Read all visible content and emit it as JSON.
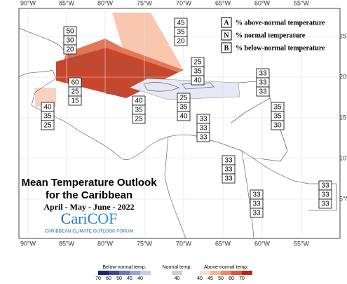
{
  "map": {
    "lon_labels": [
      "90°W",
      "85°W",
      "80°W",
      "75°W",
      "70°W",
      "65°W",
      "60°W",
      "55°W"
    ],
    "lat_labels": [
      "25°N",
      "20°N",
      "15°N",
      "10°N",
      "5°N"
    ],
    "legend": [
      {
        "key": "A",
        "text": "% above-normal temperature"
      },
      {
        "key": "N",
        "text": "% normal temperature"
      },
      {
        "key": "B",
        "text": "% below-normal temperature"
      }
    ],
    "title": {
      "line1": "Mean Temperature Outlook",
      "line2": "for the Caribbean",
      "period": "April - May - June - 2022",
      "logo": "CariCOF",
      "logo_subtitle": "CARIBBEAN CLIMATE OUTLOOK FORUM"
    },
    "outlooks": [
      [
        50,
        30,
        20
      ],
      [
        45,
        35,
        20
      ],
      [
        25,
        35,
        40
      ],
      [
        33,
        33,
        33
      ],
      [
        60,
        25,
        15
      ],
      [
        40,
        35,
        25
      ],
      [
        25,
        35,
        40
      ],
      [
        35,
        35,
        30
      ],
      [
        40,
        35,
        25
      ],
      [
        33,
        33,
        33
      ],
      [
        33,
        33,
        33
      ],
      [
        33,
        33,
        33
      ],
      [
        33,
        33,
        33
      ]
    ],
    "colorbar": {
      "below": {
        "label": "Below-normal temp.",
        "ticks": [
          70,
          60,
          50,
          45,
          40
        ]
      },
      "normal": {
        "label": "Normal temp.",
        "ticks": [
          40
        ]
      },
      "above": {
        "label": "Above-normal temp.",
        "ticks": [
          40,
          45,
          50,
          60,
          70
        ]
      }
    }
  }
}
